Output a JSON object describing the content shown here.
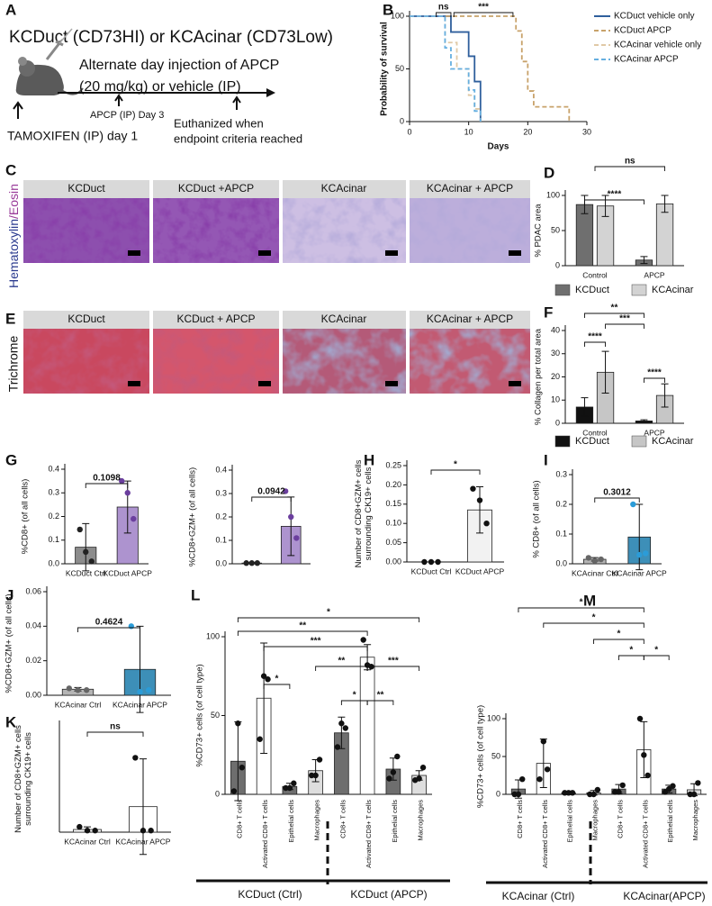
{
  "figure": {
    "panel_letters": [
      "A",
      "B",
      "C",
      "D",
      "E",
      "F",
      "G",
      "H",
      "I",
      "J",
      "K",
      "L",
      "M"
    ],
    "schematic": {
      "title": "KCDuct (CD73HI) or KCAcinar (CD73Low)",
      "injection": [
        "Alternate day injection of APCP",
        "(20 mg/kg) or vehicle (IP)"
      ],
      "apcp_day": "APCP (IP) Day 3",
      "tamoxifen": "TAMOXIFEN (IP) day 1",
      "euthanized": [
        "Euthanized when",
        "endpoint criteria reached"
      ]
    },
    "histology": {
      "he_headers": [
        "KCDuct",
        "KCDuct +APCP",
        "KCAcinar",
        "KCAcinar + APCP"
      ],
      "trichrome_headers": [
        "KCDuct",
        "KCDuct + APCP",
        "KCAcinar",
        "KCAcinar + APCP"
      ],
      "he_stain": [
        "Hematoxylin",
        "/Eosin"
      ],
      "trichrome_stain": "Trichrome"
    }
  },
  "chart_data": [
    {
      "type": "line",
      "xlabel": "Days",
      "ylabel": "Probability of survival",
      "xlim": [
        0,
        30
      ],
      "xticks": [
        0,
        10,
        20,
        30
      ],
      "ylim": [
        0,
        100
      ],
      "yticks": [
        0,
        50,
        100
      ],
      "annotations": [
        "ns",
        "***"
      ],
      "legend": "right",
      "series": [
        {
          "name": "KCDuct vehicle only",
          "color": "#2f5f9c",
          "dashed": false,
          "x": [
            0,
            7,
            7,
            10,
            10,
            11,
            11,
            12,
            12
          ],
          "values": [
            100,
            100,
            85,
            85,
            62,
            62,
            38,
            38,
            0
          ]
        },
        {
          "name": "KCDuct APCP",
          "color": "#c8a26a",
          "dashed": true,
          "x": [
            0,
            18,
            18,
            19,
            19,
            20,
            20,
            21,
            21,
            27,
            27
          ],
          "values": [
            100,
            100,
            86,
            86,
            57,
            57,
            29,
            29,
            14,
            14,
            0
          ]
        },
        {
          "name": "KCAcinar vehicle only",
          "color": "#e0c9a6",
          "dashed": true,
          "x": [
            0,
            6,
            6,
            8,
            8,
            10,
            10,
            11,
            11,
            12,
            12
          ],
          "values": [
            100,
            100,
            75,
            75,
            50,
            50,
            25,
            25,
            12,
            12,
            0
          ]
        },
        {
          "name": "KCAcinar APCP",
          "color": "#66afe0",
          "dashed": true,
          "x": [
            0,
            6,
            6,
            7,
            7,
            10,
            10,
            11,
            11,
            12,
            12
          ],
          "values": [
            100,
            100,
            70,
            70,
            50,
            50,
            30,
            30,
            10,
            10,
            0
          ]
        }
      ]
    },
    {
      "type": "bar",
      "ylabel": "% PDAC area",
      "categories": [
        "Control",
        "APCP"
      ],
      "ylim": [
        0,
        100
      ],
      "yticks": [
        0,
        50,
        100
      ],
      "legend": "bottom",
      "annotations": [
        "ns",
        "****"
      ],
      "series": [
        {
          "name": "KCDuct",
          "color": "#6f6f6f",
          "values": [
            87,
            8
          ],
          "errors": [
            13,
            5
          ]
        },
        {
          "name": "KCAcinar",
          "color": "#d3d3d3",
          "values": [
            85,
            88
          ],
          "errors": [
            15,
            12
          ]
        }
      ]
    },
    {
      "type": "bar",
      "ylabel": "% Collagen per total area",
      "categories": [
        "Control",
        "APCP"
      ],
      "ylim": [
        0,
        40
      ],
      "yticks": [
        0,
        10,
        20,
        30,
        40
      ],
      "legend": "bottom",
      "annotations": [
        "**",
        "***",
        "****",
        "****"
      ],
      "series": [
        {
          "name": "KCDuct",
          "color": "#111111",
          "values": [
            7,
            1
          ],
          "errors": [
            4,
            0.5
          ]
        },
        {
          "name": "KCAcinar",
          "color": "#c6c6c6",
          "values": [
            22,
            12
          ],
          "errors": [
            9,
            5
          ]
        }
      ]
    },
    {
      "type": "bar",
      "ylabel": "%CD8+ (of all cells)",
      "categories": [
        "KCDuct Ctrl",
        "KCDuct APCP"
      ],
      "colors": [
        "#8c8c8c",
        "#ad93cf"
      ],
      "point_colors": [
        "#222222",
        "#6b3f9e"
      ],
      "values": [
        0.07,
        0.24
      ],
      "errors": [
        0.1,
        0.11
      ],
      "points": [
        [
          0.145,
          0.05,
          0.01
        ],
        [
          0.35,
          0.3,
          0.19
        ]
      ],
      "ylim": [
        0,
        0.4
      ],
      "yticks": [
        {
          "value": 0,
          "label": "0.0"
        },
        0.1,
        0.2,
        0.3,
        0.4
      ],
      "annotations": [
        "0.1098"
      ]
    },
    {
      "type": "bar",
      "ylabel": "%CD8+GZM+ (of all cells)",
      "categories": [
        null,
        null
      ],
      "colors": [
        "#8c8c8c",
        "#ad93cf"
      ],
      "point_colors": [
        "#222222",
        "#6b3f9e"
      ],
      "values": [
        0.003,
        0.16
      ],
      "errors": [
        0.003,
        0.125
      ],
      "points": [
        [
          0.003,
          0.003,
          0.003
        ],
        [
          0.31,
          0.2,
          0.11
        ]
      ],
      "ylim": [
        0,
        0.4
      ],
      "yticks": [
        {
          "value": 0,
          "label": "0.0"
        },
        0.1,
        0.2,
        0.3,
        0.4
      ],
      "annotations": [
        "0.0942"
      ]
    },
    {
      "type": "bar",
      "ylabel": [
        "Number of CD8+GZM+ cells",
        "surrounding CK19+ cells"
      ],
      "categories": [
        "KCDuct Ctrl",
        "KCDuct APCP"
      ],
      "colors": [
        "#ffffff",
        "#f2f2f2"
      ],
      "point_colors": [
        "#111111",
        "#111111"
      ],
      "values": [
        0,
        0.135
      ],
      "errors": [
        0,
        0.06
      ],
      "points": [
        [
          0,
          0,
          0
        ],
        [
          0.19,
          0.16,
          0.1
        ]
      ],
      "ylim": [
        0,
        0.25
      ],
      "yticks": [
        {
          "value": 0,
          "label": "0.00"
        },
        0.05,
        {
          "value": 0.1,
          "label": "0.10"
        },
        0.15,
        {
          "value": 0.2,
          "label": "0.20"
        },
        0.25
      ],
      "annotations": [
        "*"
      ]
    },
    {
      "type": "bar",
      "ylabel": "% CD8+ (of all cells)",
      "categories": [
        "KCAcinar Ctrl",
        "KCAcinar APCP"
      ],
      "colors": [
        "#b5b5b5",
        "#3d8fb8"
      ],
      "point_colors": [
        "#666666",
        "#2b9cd8"
      ],
      "values": [
        0.015,
        0.09
      ],
      "errors": [
        0.006,
        0.11
      ],
      "points": [
        [
          0.02,
          0.01,
          0.015
        ],
        [
          0.2,
          0.03,
          0.035
        ]
      ],
      "ylim": [
        0,
        0.3
      ],
      "yticks": [
        {
          "value": 0,
          "label": "0.0"
        },
        0.1,
        0.2,
        0.3
      ],
      "annotations": [
        "0.3012"
      ]
    },
    {
      "type": "bar",
      "ylabel": "%CD8+GZM+ (of all cells)",
      "categories": [
        "KCAcinar Ctrl",
        "KCAcinar APCP"
      ],
      "colors": [
        "#b5b5b5",
        "#3d8fb8"
      ],
      "point_colors": [
        "#666666",
        "#2b9cd8"
      ],
      "values": [
        0.0035,
        0.015
      ],
      "errors": [
        0.001,
        0.025
      ],
      "points": [
        [
          0.004,
          0.003,
          0.003
        ],
        [
          0.04,
          0.002,
          0.003
        ]
      ],
      "ylim": [
        0,
        0.06
      ],
      "yticks": [
        {
          "value": 0,
          "label": "0.00"
        },
        0.02,
        0.04,
        0.06
      ],
      "annotations": [
        "0.4624"
      ]
    },
    {
      "type": "bar",
      "ylabel": [
        "Number of CD8+GZM+ cells",
        "surrounding CK19+ cells"
      ],
      "categories": [
        "KCAcinar Ctrl",
        "KCAcinar APCP"
      ],
      "colors": [
        "#ffffff",
        "#ffffff"
      ],
      "point_colors": [
        "#111111",
        "#111111"
      ],
      "values": [
        0.005,
        0.048
      ],
      "errors": [
        0.005,
        0.09
      ],
      "points": [
        [
          0.01,
          0.003,
          0.003
        ],
        [
          0.14,
          0.003,
          0.003
        ]
      ],
      "ylim": [
        0,
        0.2
      ],
      "yticks": [],
      "annotations": [
        "ns"
      ]
    },
    {
      "type": "bar",
      "ylabel": "%CD73+ cells (of cell type)",
      "rotate_labels": true,
      "categories": [
        "CD8+ T cells",
        "Activated CD8+ T cells",
        "Epithelial cells",
        "Macrophages",
        "CD8+ T cells",
        "Activated CD8+ T cells",
        "Epithelial cells",
        "Macrophages"
      ],
      "colors": [
        "#6e6e6e",
        "#ffffff",
        "#6e6e6e",
        "#dedede",
        "#6e6e6e",
        "#ffffff",
        "#6e6e6e",
        "#dedede"
      ],
      "point_colors": [
        "#111111",
        "#111111",
        "#111111",
        "#111111",
        "#111111",
        "#111111",
        "#111111",
        "#111111"
      ],
      "values": [
        21,
        61,
        5,
        15,
        39,
        87,
        16,
        12
      ],
      "errors": [
        25,
        35,
        2,
        7,
        10,
        8,
        7,
        3
      ],
      "points": [
        [
          2,
          45,
          17
        ],
        [
          35,
          75,
          73
        ],
        [
          4,
          4,
          7
        ],
        [
          12,
          12,
          22
        ],
        [
          30,
          45,
          42
        ],
        [
          98,
          82,
          81
        ],
        [
          10,
          14,
          24
        ],
        [
          9,
          10,
          17
        ]
      ],
      "ylim": [
        0,
        100
      ],
      "yticks": [
        0,
        50,
        100
      ],
      "groups": [
        "KCDuct (Ctrl)",
        "KCDuct (APCP)"
      ],
      "annotations": [
        "*",
        "**",
        "***",
        "**",
        "***",
        "*",
        "*",
        "**"
      ]
    },
    {
      "type": "bar",
      "ylabel": "%CD73+ cells (of cell type)",
      "rotate_labels": true,
      "categories": [
        "CD8+ T cells",
        "Activated CD8+ T cells",
        "Epithelial cells",
        "Macrophages",
        "CD8+ T cells",
        "Activated CD8+ T cells",
        "Epithelial cells",
        "Macrophages"
      ],
      "colors": [
        "#6e6e6e",
        "#ffffff",
        "#6e6e6e",
        "#dedede",
        "#6e6e6e",
        "#ffffff",
        "#6e6e6e",
        "#dedede"
      ],
      "point_colors": [
        "#111111",
        "#111111",
        "#111111",
        "#111111",
        "#111111",
        "#111111",
        "#111111",
        "#111111"
      ],
      "values": [
        7,
        41,
        2,
        2,
        7,
        59,
        7,
        6
      ],
      "errors": [
        12,
        32,
        1,
        3,
        6,
        37,
        5,
        8
      ],
      "points": [
        [
          0,
          0,
          20
        ],
        [
          20,
          70,
          33
        ],
        [
          2,
          2,
          2
        ],
        [
          0,
          0,
          6
        ],
        [
          3,
          3,
          12
        ],
        [
          100,
          52,
          25
        ],
        [
          3,
          7,
          11
        ],
        [
          0,
          0,
          15
        ]
      ],
      "ylim": [
        0,
        100
      ],
      "yticks": [
        0,
        50,
        100
      ],
      "groups": [
        "KCAcinar (Ctrl)",
        "KCAcinar(APCP)"
      ],
      "annotations": [
        "*",
        "*",
        "*",
        "*",
        "*"
      ]
    }
  ]
}
